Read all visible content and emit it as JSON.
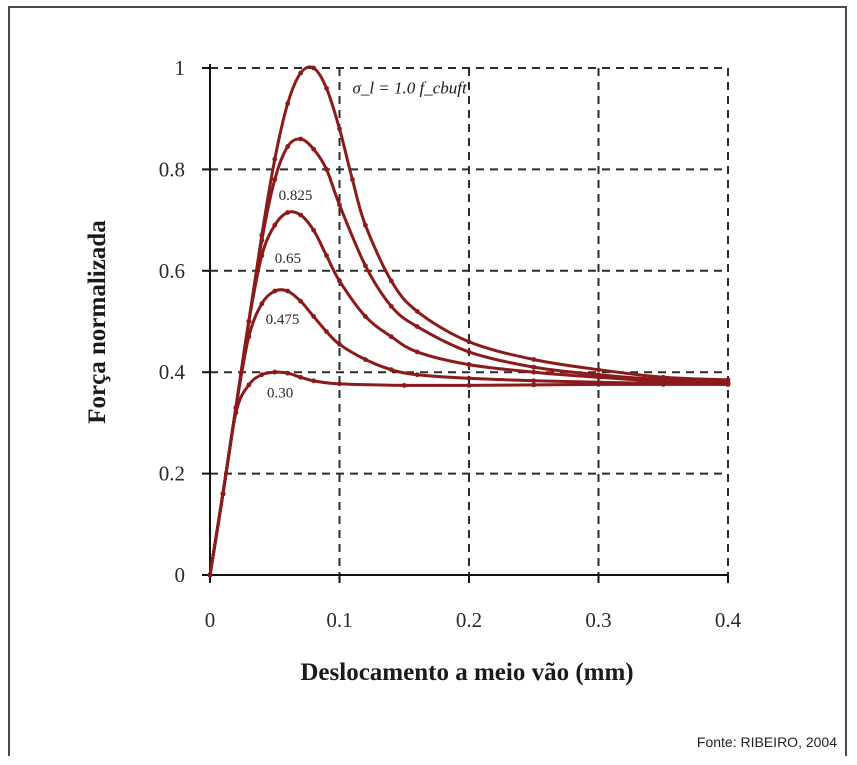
{
  "source_note": "Fonte: RIBEIRO, 2004",
  "colors": {
    "curve": "#8b1a1a",
    "grid": "#2b2b2b",
    "axis": "#111111"
  },
  "chart_data": {
    "type": "line",
    "title": "",
    "xlabel": "Deslocamento a meio vão (mm)",
    "ylabel": "Força normalizada",
    "xlim": [
      0,
      0.4
    ],
    "ylim": [
      0,
      1
    ],
    "x_ticks": [
      "0",
      "0.1",
      "0.2",
      "0.3",
      "0.4"
    ],
    "y_ticks": [
      "0",
      "0.2",
      "0.4",
      "0.6",
      "0.8",
      "1"
    ],
    "grid": true,
    "annotation": "σ_l = 1.0 f_cbuft",
    "series": [
      {
        "label": "σ_l = 1.0 f_cbuft",
        "points": [
          [
            0,
            0
          ],
          [
            0.01,
            0.16
          ],
          [
            0.02,
            0.33
          ],
          [
            0.03,
            0.5
          ],
          [
            0.04,
            0.67
          ],
          [
            0.05,
            0.82
          ],
          [
            0.06,
            0.93
          ],
          [
            0.07,
            0.99
          ],
          [
            0.08,
            1.0
          ],
          [
            0.09,
            0.96
          ],
          [
            0.1,
            0.88
          ],
          [
            0.11,
            0.78
          ],
          [
            0.12,
            0.69
          ],
          [
            0.14,
            0.58
          ],
          [
            0.16,
            0.52
          ],
          [
            0.2,
            0.46
          ],
          [
            0.25,
            0.425
          ],
          [
            0.3,
            0.405
          ],
          [
            0.35,
            0.39
          ],
          [
            0.4,
            0.385
          ]
        ]
      },
      {
        "label": "0.825",
        "points": [
          [
            0,
            0
          ],
          [
            0.01,
            0.16
          ],
          [
            0.02,
            0.33
          ],
          [
            0.03,
            0.5
          ],
          [
            0.04,
            0.66
          ],
          [
            0.05,
            0.78
          ],
          [
            0.06,
            0.845
          ],
          [
            0.07,
            0.86
          ],
          [
            0.08,
            0.84
          ],
          [
            0.09,
            0.8
          ],
          [
            0.1,
            0.73
          ],
          [
            0.12,
            0.61
          ],
          [
            0.14,
            0.53
          ],
          [
            0.16,
            0.49
          ],
          [
            0.2,
            0.44
          ],
          [
            0.25,
            0.41
          ],
          [
            0.3,
            0.395
          ],
          [
            0.35,
            0.385
          ],
          [
            0.4,
            0.38
          ]
        ]
      },
      {
        "label": "0.65",
        "points": [
          [
            0,
            0
          ],
          [
            0.01,
            0.16
          ],
          [
            0.02,
            0.33
          ],
          [
            0.03,
            0.5
          ],
          [
            0.04,
            0.63
          ],
          [
            0.05,
            0.69
          ],
          [
            0.06,
            0.715
          ],
          [
            0.07,
            0.71
          ],
          [
            0.08,
            0.68
          ],
          [
            0.09,
            0.63
          ],
          [
            0.1,
            0.58
          ],
          [
            0.12,
            0.51
          ],
          [
            0.14,
            0.47
          ],
          [
            0.16,
            0.44
          ],
          [
            0.2,
            0.415
          ],
          [
            0.25,
            0.4
          ],
          [
            0.3,
            0.39
          ],
          [
            0.35,
            0.382
          ],
          [
            0.4,
            0.378
          ]
        ]
      },
      {
        "label": "0.475",
        "points": [
          [
            0,
            0
          ],
          [
            0.01,
            0.16
          ],
          [
            0.02,
            0.33
          ],
          [
            0.03,
            0.47
          ],
          [
            0.04,
            0.535
          ],
          [
            0.05,
            0.56
          ],
          [
            0.06,
            0.56
          ],
          [
            0.07,
            0.54
          ],
          [
            0.08,
            0.51
          ],
          [
            0.09,
            0.48
          ],
          [
            0.1,
            0.455
          ],
          [
            0.12,
            0.425
          ],
          [
            0.14,
            0.405
          ],
          [
            0.16,
            0.395
          ],
          [
            0.2,
            0.388
          ],
          [
            0.25,
            0.383
          ],
          [
            0.3,
            0.38
          ],
          [
            0.35,
            0.378
          ],
          [
            0.4,
            0.376
          ]
        ]
      },
      {
        "label": "0.30",
        "points": [
          [
            0,
            0
          ],
          [
            0.01,
            0.16
          ],
          [
            0.02,
            0.32
          ],
          [
            0.03,
            0.375
          ],
          [
            0.04,
            0.395
          ],
          [
            0.05,
            0.4
          ],
          [
            0.06,
            0.398
          ],
          [
            0.07,
            0.39
          ],
          [
            0.08,
            0.383
          ],
          [
            0.1,
            0.377
          ],
          [
            0.15,
            0.374
          ],
          [
            0.2,
            0.374
          ],
          [
            0.25,
            0.375
          ],
          [
            0.3,
            0.376
          ],
          [
            0.35,
            0.376
          ],
          [
            0.4,
            0.376
          ]
        ]
      }
    ]
  }
}
